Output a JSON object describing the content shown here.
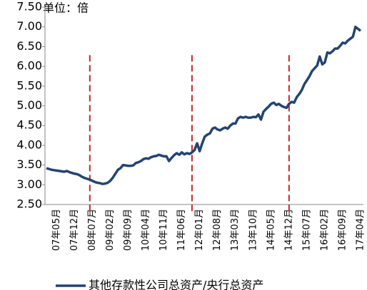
{
  "chart_data": {
    "type": "line",
    "annotation": "单位：倍",
    "categories": [
      null,
      null,
      null,
      null,
      "07年05月",
      null,
      null,
      null,
      null,
      null,
      null,
      "07年12月",
      null,
      null,
      null,
      null,
      null,
      null,
      "08年07月",
      null,
      null,
      null,
      null,
      null,
      null,
      "09年02月",
      null,
      null,
      null,
      null,
      null,
      null,
      "09年09月",
      null,
      null,
      null,
      null,
      null,
      null,
      "10年04月",
      null,
      null,
      null,
      null,
      null,
      null,
      "10年11月",
      null,
      null,
      null,
      null,
      null,
      null,
      "11年06月",
      null,
      null,
      null,
      null,
      null,
      null,
      "12年01月",
      null,
      null,
      null,
      null,
      null,
      null,
      "12年08月",
      null,
      null,
      null,
      null,
      null,
      null,
      "13年03月",
      null,
      null,
      null,
      null,
      null,
      null,
      "13年10月",
      null,
      null,
      null,
      null,
      null,
      null,
      "14年05月",
      null,
      null,
      null,
      null,
      null,
      null,
      "14年12月",
      null,
      null,
      null,
      null,
      null,
      null,
      "15年07月",
      null,
      null,
      null,
      null,
      null,
      null,
      "16年02月",
      null,
      null,
      null,
      null,
      null,
      null,
      "16年09月",
      null,
      null,
      null,
      null,
      null,
      null,
      "17年04月"
    ],
    "series": [
      {
        "name": "其他存款性公司总资产/央行总资产",
        "color": "#244471",
        "values": [
          3.42,
          3.4,
          3.38,
          3.37,
          3.36,
          3.35,
          3.34,
          3.33,
          3.35,
          3.32,
          3.3,
          3.28,
          3.27,
          3.24,
          3.2,
          3.17,
          3.15,
          3.13,
          3.1,
          3.07,
          3.05,
          3.04,
          3.02,
          3.03,
          3.05,
          3.1,
          3.18,
          3.28,
          3.38,
          3.42,
          3.5,
          3.49,
          3.48,
          3.48,
          3.49,
          3.55,
          3.57,
          3.6,
          3.65,
          3.67,
          3.66,
          3.7,
          3.72,
          3.73,
          3.76,
          3.74,
          3.72,
          3.72,
          3.6,
          3.68,
          3.75,
          3.8,
          3.76,
          3.82,
          3.77,
          3.8,
          3.78,
          3.82,
          3.88,
          4.05,
          3.85,
          4.05,
          4.22,
          4.27,
          4.3,
          4.42,
          4.45,
          4.4,
          4.38,
          4.42,
          4.45,
          4.42,
          4.5,
          4.55,
          4.55,
          4.68,
          4.72,
          4.7,
          4.72,
          4.7,
          4.7,
          4.72,
          4.71,
          4.78,
          4.65,
          4.85,
          4.92,
          4.98,
          5.05,
          5.08,
          5.02,
          5.05,
          5.0,
          4.97,
          4.95,
          5.05,
          5.1,
          5.08,
          5.22,
          5.3,
          5.4,
          5.55,
          5.65,
          5.75,
          5.88,
          5.95,
          6.02,
          6.25,
          6.05,
          6.1,
          6.35,
          6.33,
          6.38,
          6.45,
          6.45,
          6.52,
          6.6,
          6.58,
          6.65,
          6.7,
          6.75,
          7.0,
          6.95,
          6.9
        ]
      }
    ],
    "ylim": [
      2.5,
      7.5
    ],
    "yticks": [
      {
        "value": 2.5,
        "label": "2.50"
      },
      {
        "value": 3,
        "label": "3.00"
      },
      {
        "value": 3.5,
        "label": "3.50"
      },
      {
        "value": 4,
        "label": "4.00"
      },
      {
        "value": 4.5,
        "label": "4.50"
      },
      {
        "value": 5,
        "label": "5.00"
      },
      {
        "value": 5.5,
        "label": "5.50"
      },
      {
        "value": 6,
        "label": "6.00"
      },
      {
        "value": 6.5,
        "label": "6.50"
      },
      {
        "value": 7,
        "label": "7.00"
      },
      {
        "value": 7.5,
        "label": "7.50"
      }
    ],
    "vlines": [
      17,
      57,
      95
    ],
    "vline_color": "#c0282a",
    "grid": false,
    "legend": "bottom"
  }
}
